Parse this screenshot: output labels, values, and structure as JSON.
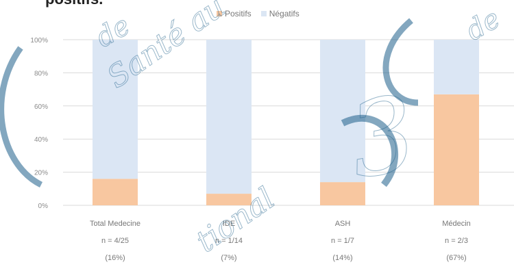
{
  "title": "positifs.",
  "legend": [
    {
      "name": "Positifs",
      "color": "#f8c7a0"
    },
    {
      "name": "Négatifs",
      "color": "#dbe6f4"
    }
  ],
  "watermark_text": [
    "Santé au",
    "de",
    "de",
    "3",
    "tional"
  ],
  "chart_data": {
    "type": "bar",
    "stacked": true,
    "title": "",
    "xlabel": "",
    "ylabel": "",
    "ylim": [
      0,
      100
    ],
    "yticks": [
      "0%",
      "20%",
      "40%",
      "60%",
      "80%",
      "100%"
    ],
    "categories": [
      {
        "name": "Total Medecine",
        "count": "n = 4/25",
        "pct": "(16%)"
      },
      {
        "name": "IDE",
        "count": "n = 1/14",
        "pct": "(7%)"
      },
      {
        "name": "ASH",
        "count": "n = 1/7",
        "pct": "(14%)"
      },
      {
        "name": "Médecin",
        "count": "n = 2/3",
        "pct": "(67%)"
      }
    ],
    "series": [
      {
        "name": "Positifs",
        "values": [
          16,
          7,
          14,
          67
        ],
        "color": "#f8c7a0"
      },
      {
        "name": "Négatifs",
        "values": [
          84,
          93,
          86,
          33
        ],
        "color": "#dbe6f4"
      }
    ],
    "grid": true,
    "legend_position": "top"
  }
}
